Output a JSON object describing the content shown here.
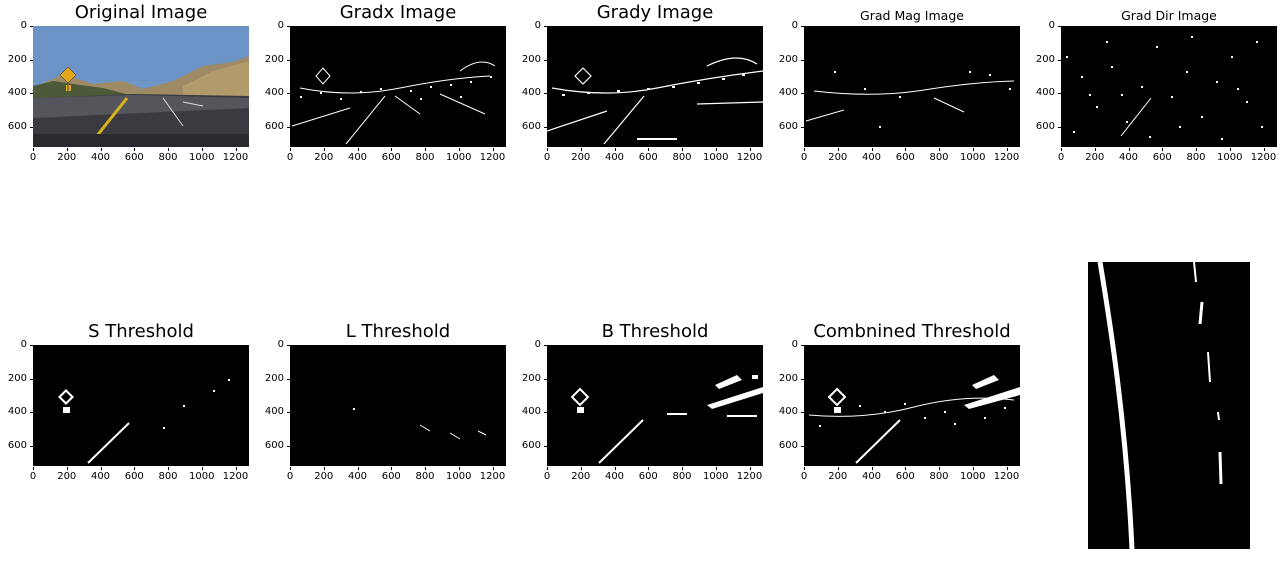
{
  "panels": [
    {
      "id": "original",
      "title": "Original Image"
    },
    {
      "id": "gradx",
      "title": "Gradx Image"
    },
    {
      "id": "grady",
      "title": "Grady Image"
    },
    {
      "id": "gradmag",
      "title": "Grad Mag Image"
    },
    {
      "id": "graddir",
      "title": "Grad Dir Image"
    },
    {
      "id": "sthresh",
      "title": "S Threshold"
    },
    {
      "id": "lthresh",
      "title": "L Threshold"
    },
    {
      "id": "bthresh",
      "title": "B Threshold"
    },
    {
      "id": "combined",
      "title": "Combnined Threshold"
    },
    {
      "id": "warped",
      "title": ""
    }
  ],
  "x_ticks": [
    "0",
    "200",
    "400",
    "600",
    "800",
    "1000",
    "1200"
  ],
  "y_ticks": [
    "0",
    "200",
    "400",
    "600"
  ]
}
